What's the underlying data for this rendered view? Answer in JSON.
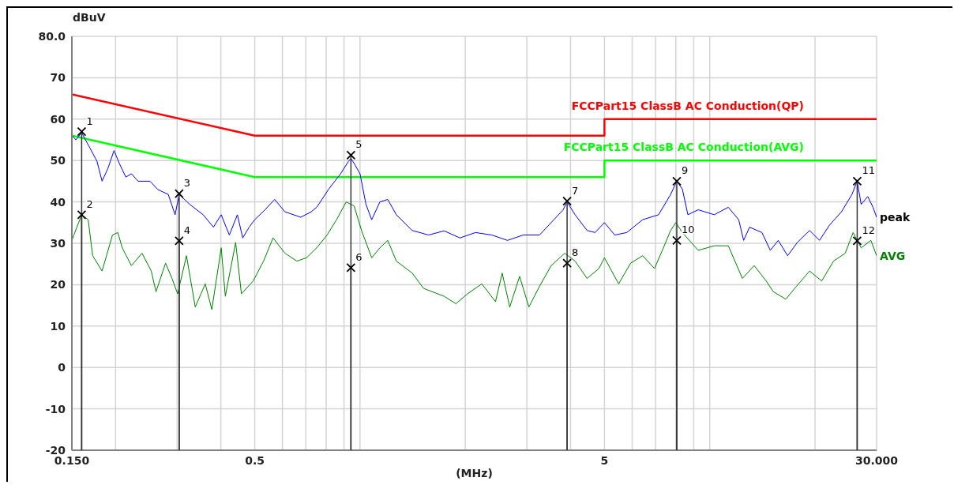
{
  "chart_data": {
    "type": "line",
    "ylabel": "dBuV",
    "xlabel": "(MHz)",
    "log": "x",
    "grid": true,
    "xlim": [
      0.15,
      30
    ],
    "xticks": [
      {
        "value": 0.15,
        "label": "0.150"
      },
      {
        "value": 0.2,
        "label": null
      },
      {
        "value": 0.3,
        "label": null
      },
      {
        "value": 0.4,
        "label": null
      },
      {
        "value": 0.5,
        "label": "0.5"
      },
      {
        "value": 0.6,
        "label": null
      },
      {
        "value": 0.7,
        "label": null
      },
      {
        "value": 0.8,
        "label": null
      },
      {
        "value": 0.9,
        "label": null
      },
      {
        "value": 1,
        "label": null
      },
      {
        "value": 2,
        "label": null
      },
      {
        "value": 3,
        "label": null
      },
      {
        "value": 4,
        "label": null
      },
      {
        "value": 5,
        "label": "5"
      },
      {
        "value": 6,
        "label": null
      },
      {
        "value": 7,
        "label": null
      },
      {
        "value": 8,
        "label": null
      },
      {
        "value": 9,
        "label": null
      },
      {
        "value": 10,
        "label": null
      },
      {
        "value": 20,
        "label": null
      },
      {
        "value": 30,
        "label": "30.000"
      }
    ],
    "ylim": [
      -20,
      80
    ],
    "yticks": [
      -20,
      -10,
      0,
      10,
      20,
      30,
      40,
      50,
      60,
      70,
      {
        "value": 80,
        "label": "80.0"
      }
    ],
    "series": [
      {
        "name": "FCCPart15 ClassB AC Conduction(QP)",
        "color": "#ff0000",
        "x": [
          0.15,
          0.5,
          5,
          5,
          30
        ],
        "values": [
          66,
          56,
          56,
          60,
          60
        ]
      },
      {
        "name": "FCCPart15 ClassB AC Conduction(AVG)",
        "color": "#00ff00",
        "x": [
          0.15,
          0.5,
          5,
          5,
          30
        ],
        "values": [
          56,
          46,
          46,
          50,
          50
        ]
      },
      {
        "name": "peak",
        "color": "#0000ff",
        "x": [
          0.15,
          0.154,
          0.16,
          0.169,
          0.177,
          0.183,
          0.19,
          0.198,
          0.205,
          0.214,
          0.222,
          0.232,
          0.251,
          0.264,
          0.283,
          0.296,
          0.304,
          0.326,
          0.356,
          0.381,
          0.401,
          0.423,
          0.446,
          0.462,
          0.482,
          0.5,
          0.535,
          0.57,
          0.61,
          0.677,
          0.725,
          0.752,
          0.814,
          0.88,
          0.927,
          0.942,
          0.962,
          1.0,
          1.04,
          1.08,
          1.14,
          1.2,
          1.27,
          1.41,
          1.57,
          1.74,
          1.93,
          2.14,
          2.38,
          2.64,
          2.93,
          3.26,
          3.52,
          3.81,
          3.91,
          4.12,
          4.46,
          4.7,
          5.0,
          5.35,
          5.79,
          6.43,
          7.14,
          7.73,
          8.05,
          8.35,
          8.66,
          9.27,
          10.3,
          11.3,
          12.1,
          12.5,
          13.0,
          14.1,
          14.9,
          15.7,
          16.7,
          17.8,
          19.3,
          20.6,
          22.0,
          23.8,
          25.5,
          26.4,
          27.1,
          28.3,
          29.3,
          30
        ],
        "values": [
          56.1,
          55,
          56.7,
          53,
          49.8,
          45,
          48,
          52.4,
          49.3,
          46,
          46.8,
          45,
          45,
          43,
          41.8,
          36.9,
          41.8,
          39.4,
          36.9,
          33.9,
          36.9,
          32,
          36.9,
          31.3,
          33.9,
          35.7,
          38.1,
          40.6,
          37.6,
          36.3,
          37.6,
          38.7,
          43.1,
          46.8,
          49.8,
          50.5,
          49.3,
          46.8,
          39.4,
          35.7,
          40,
          40.6,
          36.9,
          33.1,
          32,
          33,
          31.3,
          32.6,
          32,
          30.7,
          32,
          32,
          35,
          38.1,
          40,
          36.9,
          33.1,
          32.6,
          35,
          32,
          32.6,
          35.7,
          36.9,
          41.8,
          45,
          43.1,
          36.9,
          38.1,
          36.9,
          38.7,
          35.7,
          30.7,
          33.9,
          32.6,
          28.3,
          30.7,
          27,
          30.2,
          33.1,
          30.7,
          34.4,
          37.6,
          41.8,
          45,
          39.4,
          41.3,
          38.7,
          36.3
        ]
      },
      {
        "name": "AVG",
        "color": "#008000",
        "x": [
          0.15,
          0.152,
          0.16,
          0.167,
          0.172,
          0.183,
          0.196,
          0.203,
          0.209,
          0.222,
          0.238,
          0.253,
          0.261,
          0.278,
          0.29,
          0.301,
          0.319,
          0.338,
          0.361,
          0.377,
          0.401,
          0.412,
          0.441,
          0.458,
          0.495,
          0.53,
          0.564,
          0.61,
          0.66,
          0.703,
          0.752,
          0.805,
          0.857,
          0.913,
          0.962,
          1.01,
          1.08,
          1.14,
          1.2,
          1.27,
          1.41,
          1.52,
          1.74,
          1.88,
          2.03,
          2.23,
          2.44,
          2.55,
          2.68,
          2.86,
          3.04,
          3.26,
          3.52,
          3.85,
          4.12,
          4.46,
          4.82,
          5.0,
          5.49,
          5.94,
          6.43,
          6.95,
          7.32,
          7.73,
          8.0,
          8.35,
          9.27,
          10.3,
          11.3,
          12.4,
          13.4,
          14.5,
          15.2,
          16.5,
          17.7,
          19.3,
          20.9,
          22.6,
          24.4,
          25.7,
          27.1,
          28.9,
          30
        ],
        "values": [
          30.7,
          32,
          36.9,
          35.7,
          27,
          23.3,
          32,
          32.6,
          28.9,
          24.6,
          27.6,
          23.3,
          18.3,
          25.2,
          21.5,
          17.8,
          27,
          14.6,
          20.2,
          14,
          28.9,
          17.2,
          30.2,
          17.8,
          20.9,
          25.7,
          31.3,
          27.6,
          25.7,
          26.5,
          28.9,
          32,
          35.7,
          40,
          39,
          33.1,
          26.5,
          28.9,
          30.7,
          25.7,
          22.8,
          19.1,
          17.2,
          15.4,
          17.8,
          20.2,
          15.9,
          22.8,
          14.6,
          22,
          14.6,
          19.6,
          24.6,
          27.6,
          25.7,
          21.5,
          23.9,
          26.5,
          20.2,
          25.2,
          27,
          23.9,
          28.3,
          33.1,
          35,
          32.6,
          28.3,
          29.4,
          29.4,
          21.5,
          24.6,
          20.9,
          18.3,
          16.5,
          19.6,
          23.3,
          20.9,
          25.7,
          27.6,
          32.6,
          28.9,
          30.7,
          27
        ]
      },
      {
        "type": "lollipop",
        "marker": "cross",
        "color": "#000000",
        "x": [
          0.16,
          0.16,
          0.304,
          0.304,
          0.942,
          0.942,
          3.91,
          3.91,
          8.05,
          8.05,
          26.4,
          26.4
        ],
        "values": [
          57,
          36.9,
          42,
          30.6,
          51.3,
          24.1,
          40.2,
          25.2,
          45,
          30.7,
          45,
          30.6
        ]
      }
    ],
    "annotations": [
      {
        "text": "1",
        "x": 0.16,
        "y": 57
      },
      {
        "text": "2",
        "x": 0.16,
        "y": 36.9
      },
      {
        "text": "3",
        "x": 0.304,
        "y": 42
      },
      {
        "text": "4",
        "x": 0.304,
        "y": 30.6
      },
      {
        "text": "5",
        "x": 0.942,
        "y": 51.3
      },
      {
        "text": "6",
        "x": 0.942,
        "y": 24.1
      },
      {
        "text": "7",
        "x": 3.91,
        "y": 40.2
      },
      {
        "text": "8",
        "x": 3.91,
        "y": 25.2
      },
      {
        "text": "9",
        "x": 8.05,
        "y": 45
      },
      {
        "text": "10",
        "x": 8.05,
        "y": 30.7
      },
      {
        "text": "11",
        "x": 26.4,
        "y": 45
      },
      {
        "text": "12",
        "x": 26.4,
        "y": 30.6
      }
    ]
  }
}
